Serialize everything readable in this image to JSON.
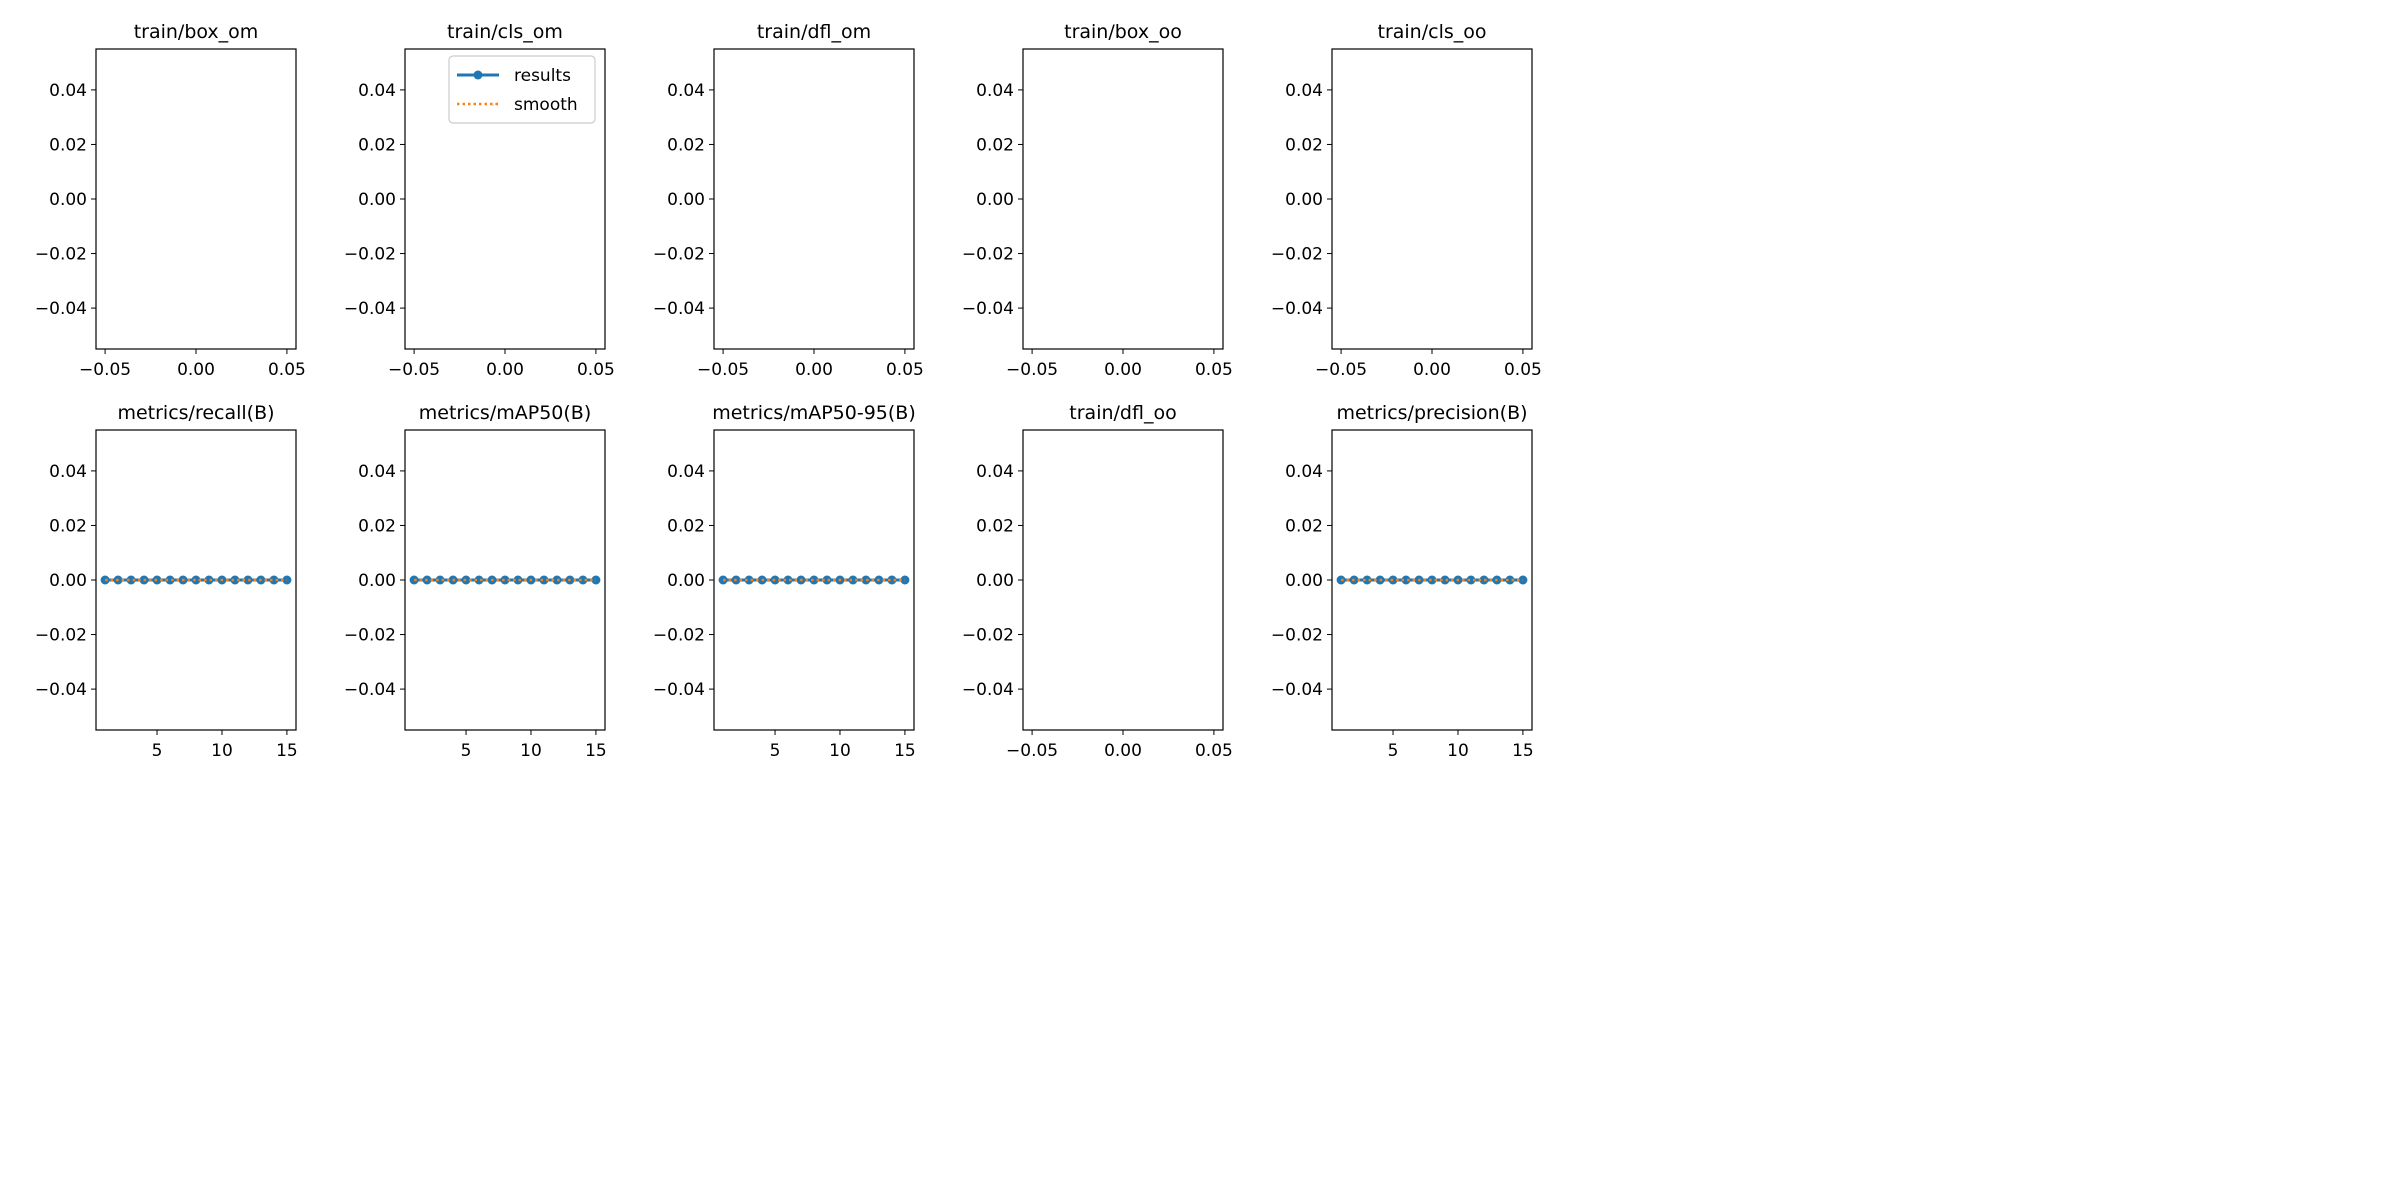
{
  "colors": {
    "results": "#1f77b4",
    "smooth": "#ff7f0e",
    "axes": "#000000",
    "legend_border": "#cccccc",
    "background": "#ffffff"
  },
  "legend": {
    "results": "results",
    "smooth": "smooth",
    "placement": "upper-right of train/cls_om panel"
  },
  "chart_data": [
    {
      "type": "line",
      "title": "train/box_om",
      "xlim": [
        -0.055,
        0.055
      ],
      "ylim": [
        -0.055,
        0.055
      ],
      "xticks": [
        "−0.05",
        "0.00",
        "0.05"
      ],
      "yticks": [
        "0.04",
        "0.02",
        "0.00",
        "−0.02",
        "−0.04"
      ],
      "grid": false,
      "series": []
    },
    {
      "type": "line",
      "title": "train/cls_om",
      "xlim": [
        -0.055,
        0.055
      ],
      "ylim": [
        -0.055,
        0.055
      ],
      "xticks": [
        "−0.05",
        "0.00",
        "0.05"
      ],
      "yticks": [
        "0.04",
        "0.02",
        "0.00",
        "−0.02",
        "−0.04"
      ],
      "grid": false,
      "series": [],
      "has_legend": true
    },
    {
      "type": "line",
      "title": "train/dfl_om",
      "xlim": [
        -0.055,
        0.055
      ],
      "ylim": [
        -0.055,
        0.055
      ],
      "xticks": [
        "−0.05",
        "0.00",
        "0.05"
      ],
      "yticks": [
        "0.04",
        "0.02",
        "0.00",
        "−0.02",
        "−0.04"
      ],
      "grid": false,
      "series": []
    },
    {
      "type": "line",
      "title": "train/box_oo",
      "xlim": [
        -0.055,
        0.055
      ],
      "ylim": [
        -0.055,
        0.055
      ],
      "xticks": [
        "−0.05",
        "0.00",
        "0.05"
      ],
      "yticks": [
        "0.04",
        "0.02",
        "0.00",
        "−0.02",
        "−0.04"
      ],
      "grid": false,
      "series": []
    },
    {
      "type": "line",
      "title": "train/cls_oo",
      "xlim": [
        -0.055,
        0.055
      ],
      "ylim": [
        -0.055,
        0.055
      ],
      "xticks": [
        "−0.05",
        "0.00",
        "0.05"
      ],
      "yticks": [
        "0.04",
        "0.02",
        "0.00",
        "−0.02",
        "−0.04"
      ],
      "grid": false,
      "series": []
    },
    {
      "type": "line",
      "title": "metrics/recall(B)",
      "xlim": [
        0.3,
        15.7
      ],
      "ylim": [
        -0.055,
        0.055
      ],
      "xticks": [
        "5",
        "10",
        "15"
      ],
      "yticks": [
        "0.04",
        "0.02",
        "0.00",
        "−0.02",
        "−0.04"
      ],
      "grid": false,
      "x": [
        1,
        2,
        3,
        4,
        5,
        6,
        7,
        8,
        9,
        10,
        11,
        12,
        13,
        14,
        15
      ],
      "series": [
        {
          "name": "results",
          "values": [
            0,
            0,
            0,
            0,
            0,
            0,
            0,
            0,
            0,
            0,
            0,
            0,
            0,
            0,
            0
          ]
        },
        {
          "name": "smooth",
          "values": [
            0,
            0,
            0,
            0,
            0,
            0,
            0,
            0,
            0,
            0,
            0,
            0,
            0,
            0,
            0
          ]
        }
      ]
    },
    {
      "type": "line",
      "title": "metrics/mAP50(B)",
      "xlim": [
        0.3,
        15.7
      ],
      "ylim": [
        -0.055,
        0.055
      ],
      "xticks": [
        "5",
        "10",
        "15"
      ],
      "yticks": [
        "0.04",
        "0.02",
        "0.00",
        "−0.02",
        "−0.04"
      ],
      "grid": false,
      "x": [
        1,
        2,
        3,
        4,
        5,
        6,
        7,
        8,
        9,
        10,
        11,
        12,
        13,
        14,
        15
      ],
      "series": [
        {
          "name": "results",
          "values": [
            0,
            0,
            0,
            0,
            0,
            0,
            0,
            0,
            0,
            0,
            0,
            0,
            0,
            0,
            0
          ]
        },
        {
          "name": "smooth",
          "values": [
            0,
            0,
            0,
            0,
            0,
            0,
            0,
            0,
            0,
            0,
            0,
            0,
            0,
            0,
            0
          ]
        }
      ]
    },
    {
      "type": "line",
      "title": "metrics/mAP50-95(B)",
      "xlim": [
        0.3,
        15.7
      ],
      "ylim": [
        -0.055,
        0.055
      ],
      "xticks": [
        "5",
        "10",
        "15"
      ],
      "yticks": [
        "0.04",
        "0.02",
        "0.00",
        "−0.02",
        "−0.04"
      ],
      "grid": false,
      "x": [
        1,
        2,
        3,
        4,
        5,
        6,
        7,
        8,
        9,
        10,
        11,
        12,
        13,
        14,
        15
      ],
      "series": [
        {
          "name": "results",
          "values": [
            0,
            0,
            0,
            0,
            0,
            0,
            0,
            0,
            0,
            0,
            0,
            0,
            0,
            0,
            0
          ]
        },
        {
          "name": "smooth",
          "values": [
            0,
            0,
            0,
            0,
            0,
            0,
            0,
            0,
            0,
            0,
            0,
            0,
            0,
            0,
            0
          ]
        }
      ]
    },
    {
      "type": "line",
      "title": "train/dfl_oo",
      "xlim": [
        -0.055,
        0.055
      ],
      "ylim": [
        -0.055,
        0.055
      ],
      "xticks": [
        "−0.05",
        "0.00",
        "0.05"
      ],
      "yticks": [
        "0.04",
        "0.02",
        "0.00",
        "−0.02",
        "−0.04"
      ],
      "grid": false,
      "series": []
    },
    {
      "type": "line",
      "title": "metrics/precision(B)",
      "xlim": [
        0.3,
        15.7
      ],
      "ylim": [
        -0.055,
        0.055
      ],
      "xticks": [
        "5",
        "10",
        "15"
      ],
      "yticks": [
        "0.04",
        "0.02",
        "0.00",
        "−0.02",
        "−0.04"
      ],
      "grid": false,
      "x": [
        1,
        2,
        3,
        4,
        5,
        6,
        7,
        8,
        9,
        10,
        11,
        12,
        13,
        14,
        15
      ],
      "series": [
        {
          "name": "results",
          "values": [
            0,
            0,
            0,
            0,
            0,
            0,
            0,
            0,
            0,
            0,
            0,
            0,
            0,
            0,
            0
          ]
        },
        {
          "name": "smooth",
          "values": [
            0,
            0,
            0,
            0,
            0,
            0,
            0,
            0,
            0,
            0,
            0,
            0,
            0,
            0,
            0
          ]
        }
      ]
    }
  ]
}
